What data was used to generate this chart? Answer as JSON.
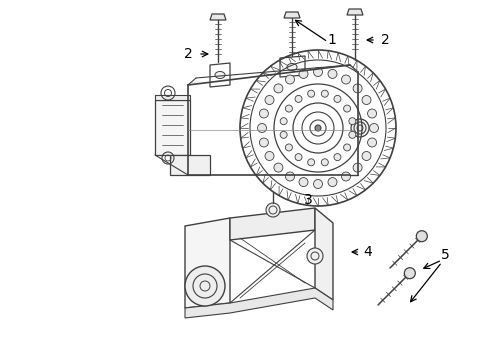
{
  "background_color": "#ffffff",
  "line_color": "#404040",
  "label_color": "#000000",
  "fig_width": 4.89,
  "fig_height": 3.6,
  "dpi": 100
}
